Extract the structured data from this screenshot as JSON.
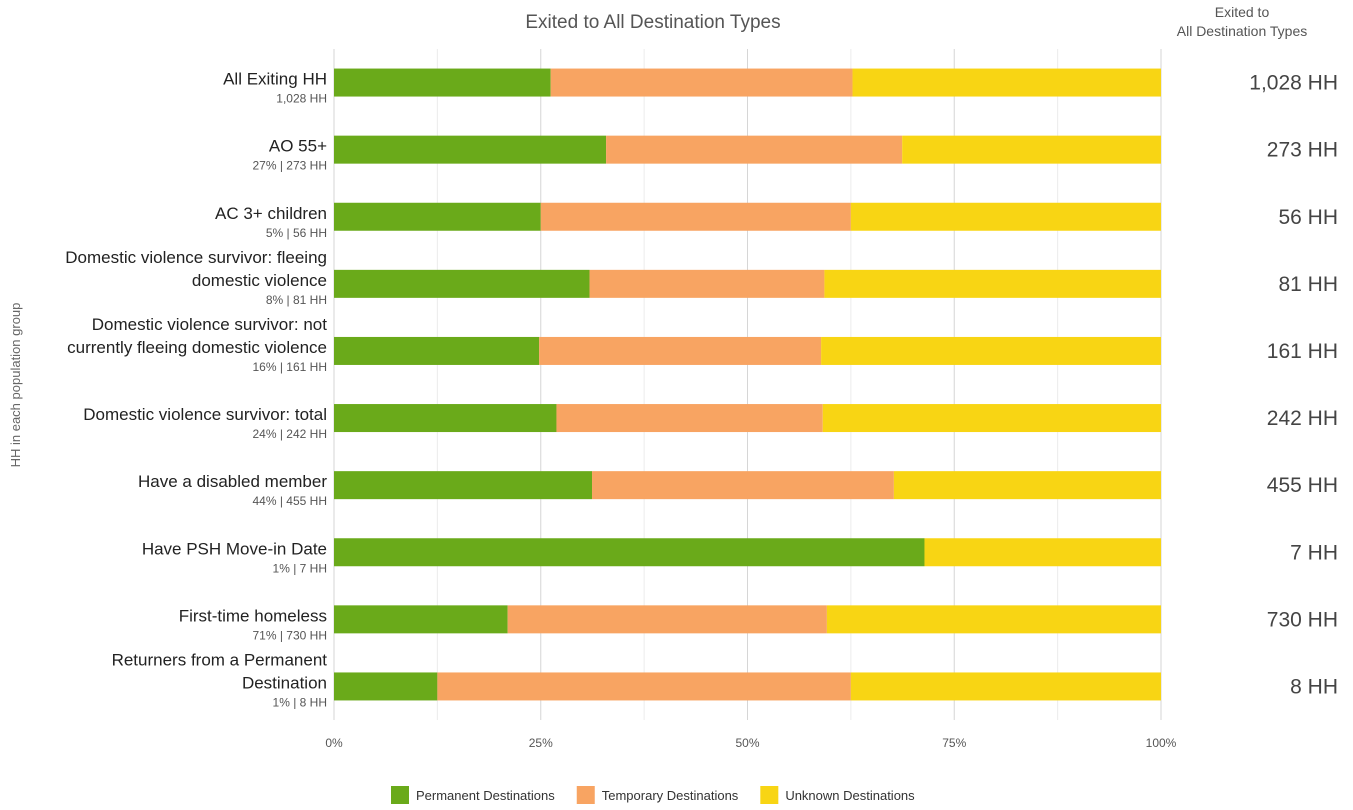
{
  "chart_data": {
    "type": "bar",
    "orientation": "horizontal",
    "stacked": "percent",
    "title": "Exited to All Destination Types",
    "right_column_header": [
      "Exited to",
      "All Destination Types"
    ],
    "ylabel": "HH in each population group",
    "xlim": [
      0,
      100
    ],
    "x_ticks": [
      "0%",
      "25%",
      "50%",
      "75%",
      "100%"
    ],
    "grid": true,
    "legend_position": "bottom",
    "categories": [
      {
        "label": [
          "All Exiting HH"
        ],
        "sublabel": "1,028 HH",
        "total": "1,028 HH"
      },
      {
        "label": [
          "AO 55+"
        ],
        "sublabel": "27% | 273 HH",
        "total": "273 HH"
      },
      {
        "label": [
          "AC 3+ children"
        ],
        "sublabel": "5% | 56 HH",
        "total": "56 HH"
      },
      {
        "label": [
          "Domestic violence survivor: fleeing",
          "domestic violence"
        ],
        "sublabel": "8% | 81 HH",
        "total": "81 HH"
      },
      {
        "label": [
          "Domestic violence survivor: not",
          "currently fleeing domestic violence"
        ],
        "sublabel": "16% | 161 HH",
        "total": "161 HH"
      },
      {
        "label": [
          "Domestic violence survivor: total"
        ],
        "sublabel": "24% | 242 HH",
        "total": "242 HH"
      },
      {
        "label": [
          "Have a disabled member"
        ],
        "sublabel": "44% | 455 HH",
        "total": "455 HH"
      },
      {
        "label": [
          "Have PSH Move-in Date"
        ],
        "sublabel": "1% | 7 HH",
        "total": "7 HH"
      },
      {
        "label": [
          "First-time homeless"
        ],
        "sublabel": "71% | 730 HH",
        "total": "730 HH"
      },
      {
        "label": [
          "Returners from a Permanent",
          "Destination"
        ],
        "sublabel": "1% | 8 HH",
        "total": "8 HH"
      }
    ],
    "series": [
      {
        "name": "Permanent Destinations",
        "color": "#6aaa1a",
        "values": [
          26.2,
          32.9,
          25.0,
          30.9,
          24.8,
          26.9,
          31.2,
          71.4,
          21.0,
          12.5
        ]
      },
      {
        "name": "Temporary Destinations",
        "color": "#f8a462",
        "values": [
          36.5,
          35.8,
          37.5,
          28.4,
          34.1,
          32.2,
          36.5,
          0,
          38.6,
          50.0
        ]
      },
      {
        "name": "Unknown Destinations",
        "color": "#f8d514",
        "values": [
          37.3,
          31.3,
          37.5,
          40.7,
          41.1,
          40.9,
          32.3,
          28.6,
          40.4,
          37.5
        ]
      }
    ]
  }
}
